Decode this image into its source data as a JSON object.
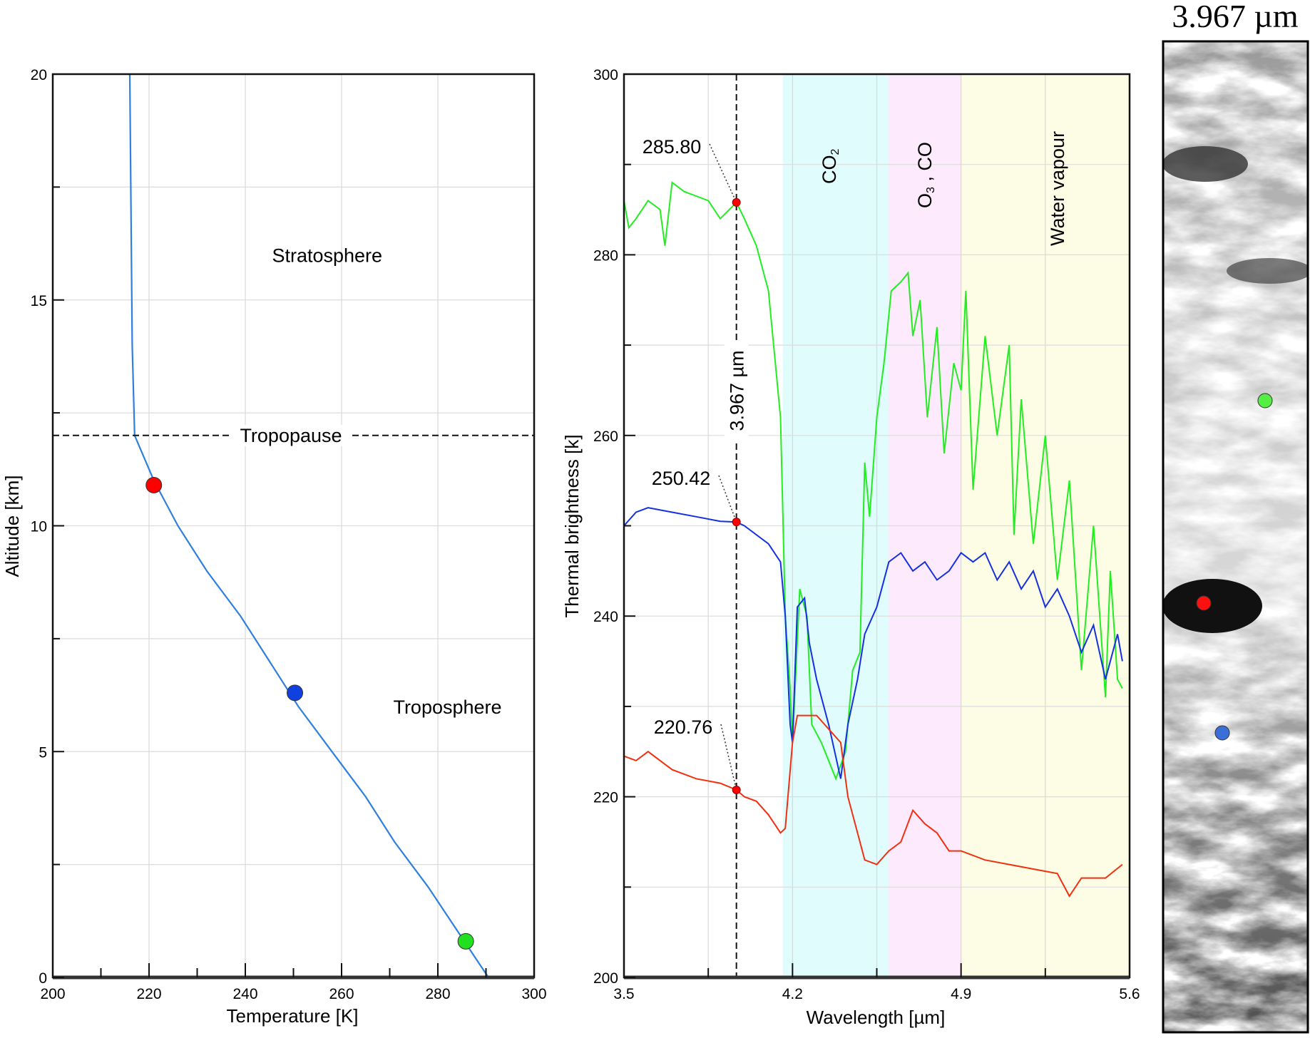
{
  "chart_data": [
    {
      "type": "line",
      "title": "",
      "xlabel": "Temperature [K]",
      "ylabel": "Altitude [km]",
      "xlim": [
        200,
        300
      ],
      "ylim": [
        0,
        20
      ],
      "xticks": [
        "200",
        "220",
        "240",
        "260",
        "280",
        "300"
      ],
      "yticks": [
        "0",
        "5",
        "10",
        "15",
        "20"
      ],
      "grid": true,
      "series": [
        {
          "name": "temperature profile",
          "color": "#2f7fe0",
          "x": [
            290.5,
            278,
            271,
            265,
            258,
            251,
            245,
            239,
            232,
            226,
            221,
            217,
            216.5,
            216
          ],
          "y": [
            0,
            2,
            3,
            4,
            5,
            6,
            7,
            8,
            9,
            10,
            11,
            12,
            14,
            20
          ]
        }
      ],
      "markers": [
        {
          "x": 221,
          "y": 10.9,
          "color": "#ff0000"
        },
        {
          "x": 250.3,
          "y": 6.3,
          "color": "#1040e0"
        },
        {
          "x": 285.8,
          "y": 0.8,
          "color": "#20e020"
        }
      ],
      "tropopause": {
        "y": 12,
        "label": "Tropopause"
      },
      "annotations": [
        {
          "text": "Stratosphere",
          "x": 257,
          "y": 16
        },
        {
          "text": "Troposphere",
          "x": 282,
          "y": 6
        }
      ]
    },
    {
      "type": "line",
      "title": "",
      "xlabel": "Wavelength [µm]",
      "ylabel": "Thermal brightness [k]",
      "xlim": [
        3.5,
        5.6
      ],
      "ylim": [
        200,
        300
      ],
      "xticks": [
        "3.5",
        "4.2",
        "4.9",
        "5.6"
      ],
      "yticks": [
        "200",
        "220",
        "240",
        "260",
        "280",
        "300"
      ],
      "grid": true,
      "bands": [
        {
          "label": "CO",
          "sub": "2",
          "from": 4.16,
          "to": 4.6,
          "color": "#e0fcfc"
        },
        {
          "label": "O",
          "sub": "3",
          "label2": " , CO",
          "from": 4.6,
          "to": 4.9,
          "color": "#fdeafc"
        },
        {
          "label": "Water vapour",
          "from": 4.9,
          "to": 5.6,
          "color": "#fdfde6"
        }
      ],
      "vline": {
        "x": 3.967,
        "label": "3.967 µm"
      },
      "point_labels": [
        {
          "text": "285.80",
          "x": 3.967,
          "y": 285.8
        },
        {
          "text": "250.42",
          "x": 3.967,
          "y": 250.42
        },
        {
          "text": "220.76",
          "x": 3.967,
          "y": 220.76
        }
      ],
      "series": [
        {
          "name": "green",
          "color": "#22ee22",
          "x": [
            3.5,
            3.52,
            3.55,
            3.6,
            3.65,
            3.67,
            3.7,
            3.75,
            3.8,
            3.85,
            3.9,
            3.967,
            4.0,
            4.05,
            4.1,
            4.15,
            4.17,
            4.19,
            4.2,
            4.23,
            4.26,
            4.28,
            4.32,
            4.38,
            4.42,
            4.45,
            4.48,
            4.5,
            4.52,
            4.55,
            4.58,
            4.61,
            4.65,
            4.68,
            4.7,
            4.73,
            4.76,
            4.8,
            4.83,
            4.87,
            4.9,
            4.92,
            4.95,
            5.0,
            5.05,
            5.1,
            5.12,
            5.15,
            5.2,
            5.25,
            5.3,
            5.35,
            5.4,
            5.45,
            5.5,
            5.52,
            5.55,
            5.57
          ],
          "y": [
            286,
            283,
            284,
            286,
            285,
            281,
            288,
            287,
            286.5,
            286,
            284,
            285.8,
            284,
            281,
            276,
            262,
            240,
            232,
            226,
            243,
            240,
            228,
            226,
            222,
            225,
            234,
            236,
            257,
            251,
            262,
            268,
            276,
            277,
            278,
            271,
            275,
            262,
            272,
            258,
            268,
            265,
            276,
            254,
            271,
            260,
            270,
            249,
            264,
            248,
            260,
            244,
            255,
            234,
            250,
            231,
            245,
            233,
            232
          ]
        },
        {
          "name": "blue",
          "color": "#1530e0",
          "x": [
            3.5,
            3.55,
            3.6,
            3.7,
            3.8,
            3.9,
            3.967,
            4.0,
            4.1,
            4.15,
            4.17,
            4.19,
            4.2,
            4.22,
            4.25,
            4.27,
            4.3,
            4.35,
            4.4,
            4.43,
            4.47,
            4.5,
            4.55,
            4.6,
            4.65,
            4.7,
            4.75,
            4.8,
            4.85,
            4.9,
            4.95,
            5.0,
            5.05,
            5.1,
            5.15,
            5.2,
            5.25,
            5.3,
            5.35,
            5.4,
            5.45,
            5.5,
            5.55,
            5.57
          ],
          "y": [
            250,
            251.5,
            252,
            251.5,
            251,
            250.5,
            250.42,
            250,
            248,
            246,
            240,
            228,
            226,
            241,
            242,
            237,
            233,
            228,
            222,
            228,
            233,
            238,
            241,
            246,
            247,
            245,
            246,
            244,
            245,
            247,
            246,
            247,
            244,
            246,
            243,
            245,
            241,
            243,
            240,
            236,
            239,
            233,
            238,
            235
          ]
        },
        {
          "name": "red",
          "color": "#f03010",
          "x": [
            3.5,
            3.55,
            3.6,
            3.7,
            3.8,
            3.9,
            3.967,
            4.0,
            4.05,
            4.1,
            4.15,
            4.17,
            4.2,
            4.22,
            4.3,
            4.4,
            4.43,
            4.47,
            4.5,
            4.55,
            4.6,
            4.65,
            4.7,
            4.75,
            4.8,
            4.85,
            4.9,
            5.0,
            5.1,
            5.2,
            5.3,
            5.35,
            5.4,
            5.5,
            5.57
          ],
          "y": [
            224.5,
            224,
            225,
            223,
            222,
            221.5,
            220.76,
            220,
            219.5,
            218,
            216,
            216.5,
            226,
            229,
            229,
            226,
            220,
            216,
            213,
            212.5,
            214,
            215,
            218.5,
            217,
            216,
            214,
            214,
            213,
            212.5,
            212,
            211.5,
            209,
            211,
            211,
            212.5
          ]
        }
      ]
    }
  ],
  "image_panel": {
    "title": "3.967 µm",
    "points": [
      {
        "name": "green",
        "color": "#55ee44"
      },
      {
        "name": "red",
        "color": "#ff1010"
      },
      {
        "name": "blue",
        "color": "#3a6fd8"
      }
    ]
  }
}
